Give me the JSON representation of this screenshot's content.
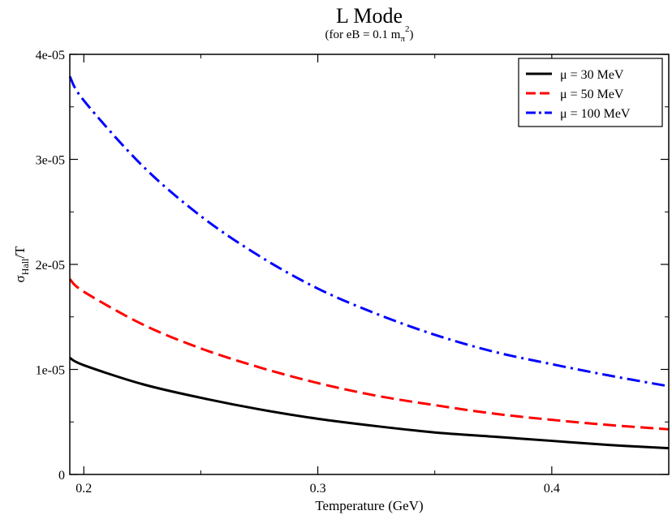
{
  "chart_data": {
    "type": "line",
    "title": "L Mode",
    "subtitle": "(for eB = 0.1 m",
    "subtitle_sub": "π",
    "subtitle_sup": "2",
    "subtitle_end": ")",
    "xlabel": "Temperature (GeV)",
    "ylabel": "σ",
    "ylabel_sub": "Hall",
    "ylabel_suffix": "/T",
    "xlim": [
      0.194,
      0.45
    ],
    "ylim": [
      0,
      4e-05
    ],
    "xticks": [
      {
        "value": 0.2,
        "label": "0.2"
      },
      {
        "value": 0.3,
        "label": "0.3"
      },
      {
        "value": 0.4,
        "label": "0.4"
      }
    ],
    "yticks": [
      {
        "value": 0,
        "label": "0"
      },
      {
        "value": 1e-05,
        "label": "1e-05"
      },
      {
        "value": 2e-05,
        "label": "2e-05"
      },
      {
        "value": 3e-05,
        "label": "3e-05"
      },
      {
        "value": 4e-05,
        "label": "4e-05"
      }
    ],
    "grid": false,
    "legend_position": "top-right",
    "x": [
      0.194,
      0.2,
      0.225,
      0.25,
      0.275,
      0.3,
      0.325,
      0.35,
      0.375,
      0.4,
      0.425,
      0.45
    ],
    "series": [
      {
        "name": "μ = 30 MeV",
        "color": "#000000",
        "dash": "solid",
        "values": [
          1.11e-05,
          1.04e-05,
          8.6e-06,
          7.3e-06,
          6.2e-06,
          5.3e-06,
          4.6e-06,
          4e-06,
          3.6e-06,
          3.2e-06,
          2.8e-06,
          2.5e-06
        ]
      },
      {
        "name": "μ = 50 MeV",
        "color": "#ff0000",
        "dash": "dashed",
        "values": [
          1.86e-05,
          1.74e-05,
          1.43e-05,
          1.2e-05,
          1.02e-05,
          8.7e-06,
          7.5e-06,
          6.6e-06,
          5.8e-06,
          5.2e-06,
          4.7e-06,
          4.3e-06
        ]
      },
      {
        "name": "μ = 100 MeV",
        "color": "#0000ff",
        "dash": "dashdot",
        "values": [
          3.79e-05,
          3.56e-05,
          2.94e-05,
          2.46e-05,
          2.08e-05,
          1.77e-05,
          1.53e-05,
          1.33e-05,
          1.17e-05,
          1.05e-05,
          9.4e-06,
          8.4e-06
        ]
      }
    ]
  }
}
